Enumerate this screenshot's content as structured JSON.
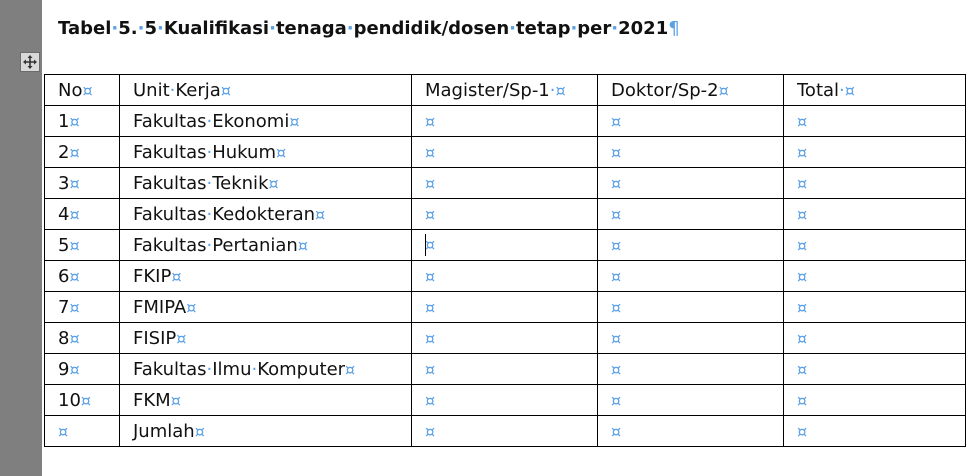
{
  "document": {
    "title_parts": [
      "Tabel",
      "5.",
      "5",
      "Kualifikasi",
      "tenaga",
      "pendidik/dosen",
      "tetap",
      "per",
      "2021"
    ],
    "pilcrow": "¶",
    "cell_marker": "¤",
    "space_marker": "·"
  },
  "table": {
    "headers": [
      "No",
      "Unit Kerja",
      "Magister/Sp-1 ",
      "Doktor/Sp-2",
      "Total "
    ],
    "rows": [
      {
        "no": "1",
        "unit": "Fakultas Ekonomi"
      },
      {
        "no": "2",
        "unit": "Fakultas Hukum"
      },
      {
        "no": "3",
        "unit": "Fakultas Teknik"
      },
      {
        "no": "4",
        "unit": "Fakultas Kedokteran"
      },
      {
        "no": "5",
        "unit": "Fakultas Pertanian"
      },
      {
        "no": "6",
        "unit": "FKIP"
      },
      {
        "no": "7",
        "unit": "FMIPA"
      },
      {
        "no": "8",
        "unit": "FISIP"
      },
      {
        "no": "9",
        "unit": "Fakultas Ilmu Komputer"
      },
      {
        "no": "10",
        "unit": "FKM"
      },
      {
        "no": "",
        "unit": "Jumlah"
      }
    ],
    "caret_row": 4,
    "caret_col": 2
  },
  "colors": {
    "formatting_marks": "#5aa0e6",
    "window_background": "#7f7f7f"
  },
  "icons": {
    "table_handle": "move-arrows-icon"
  }
}
